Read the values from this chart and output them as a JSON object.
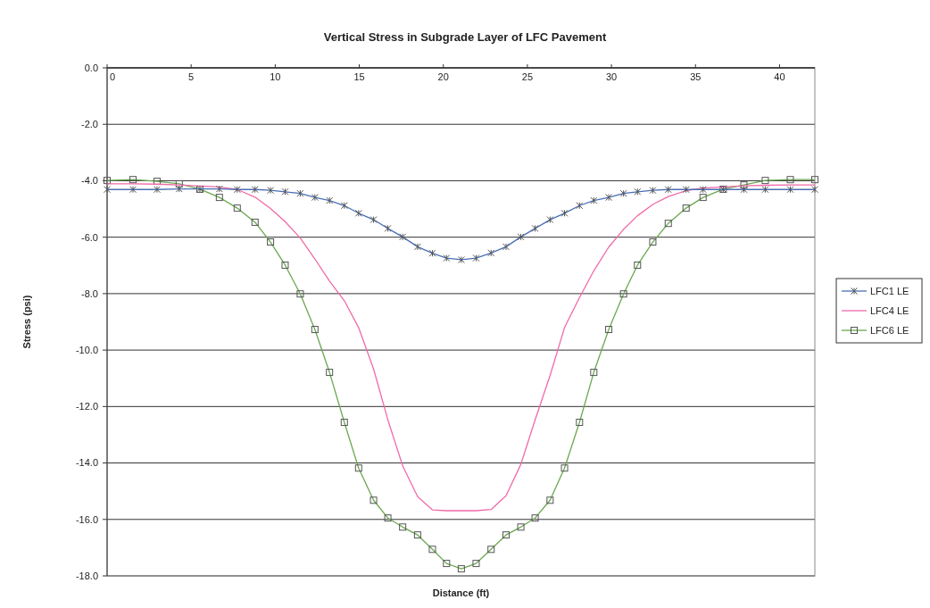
{
  "chart_data": {
    "type": "line",
    "title": "Vertical Stress in Subgrade Layer of LFC Pavement",
    "xlabel": "Distance (ft)",
    "ylabel": "Stress (psi)",
    "x": [
      0,
      1.54,
      2.97,
      4.29,
      5.52,
      6.68,
      7.74,
      8.8,
      9.72,
      10.59,
      11.49,
      12.36,
      13.23,
      14.11,
      14.96,
      15.85,
      16.7,
      17.58,
      18.47,
      19.35,
      20.19,
      21.07,
      21.95,
      22.84,
      23.73,
      24.61,
      25.46,
      26.35,
      27.21,
      28.1,
      28.95,
      29.84,
      30.72,
      31.55,
      32.46,
      33.38,
      34.44,
      35.45,
      36.65,
      37.88,
      39.15,
      40.64,
      42.1
    ],
    "series": [
      {
        "name": "LFC1 LE",
        "color": "#4a6fb5",
        "marker": "cross",
        "values": [
          -4.31,
          -4.31,
          -4.31,
          -4.29,
          -4.29,
          -4.29,
          -4.31,
          -4.31,
          -4.34,
          -4.39,
          -4.45,
          -4.59,
          -4.7,
          -4.88,
          -5.15,
          -5.38,
          -5.69,
          -5.99,
          -6.34,
          -6.57,
          -6.74,
          -6.8,
          -6.74,
          -6.56,
          -6.34,
          -5.99,
          -5.69,
          -5.38,
          -5.15,
          -4.88,
          -4.7,
          -4.59,
          -4.45,
          -4.39,
          -4.34,
          -4.31,
          -4.31,
          -4.31,
          -4.31,
          -4.31,
          -4.31,
          -4.31,
          -4.31
        ]
      },
      {
        "name": "LFC4 LE",
        "color": "#f06aa8",
        "marker": "none",
        "values": [
          -4.11,
          -4.11,
          -4.12,
          -4.15,
          -4.19,
          -4.22,
          -4.31,
          -4.58,
          -4.98,
          -5.45,
          -6.03,
          -6.77,
          -7.56,
          -8.25,
          -9.2,
          -10.67,
          -12.47,
          -14.1,
          -15.19,
          -15.66,
          -15.69,
          -15.69,
          -15.69,
          -15.65,
          -15.16,
          -14.05,
          -12.47,
          -10.9,
          -9.2,
          -8.14,
          -7.19,
          -6.35,
          -5.72,
          -5.24,
          -4.84,
          -4.56,
          -4.35,
          -4.26,
          -4.22,
          -4.18,
          -4.16,
          -4.15,
          -4.15
        ]
      },
      {
        "name": "LFC6 LE",
        "color": "#6aa84f",
        "marker": "square",
        "values": [
          -3.99,
          -3.96,
          -4.02,
          -4.11,
          -4.3,
          -4.59,
          -4.97,
          -5.47,
          -6.17,
          -6.99,
          -8.01,
          -9.27,
          -10.79,
          -12.56,
          -14.18,
          -15.32,
          -15.95,
          -16.27,
          -16.55,
          -17.06,
          -17.56,
          -17.75,
          -17.56,
          -17.06,
          -16.55,
          -16.27,
          -15.95,
          -15.32,
          -14.18,
          -12.56,
          -10.79,
          -9.27,
          -8.01,
          -6.99,
          -6.17,
          -5.51,
          -4.97,
          -4.59,
          -4.3,
          -4.15,
          -3.99,
          -3.96,
          -3.96
        ]
      }
    ],
    "xlim": [
      0,
      42.1
    ],
    "xticks": [
      0,
      5,
      10,
      15,
      20,
      25,
      30,
      35,
      40
    ],
    "ylim": [
      -18,
      0
    ],
    "yticks": [
      {
        "value": 0,
        "label": "0.0"
      },
      {
        "value": -2,
        "label": "-2.0"
      },
      {
        "value": -4,
        "label": "-4.0"
      },
      {
        "value": -6,
        "label": "-6.0"
      },
      {
        "value": -8,
        "label": "-8.0"
      },
      {
        "value": -10,
        "label": "-10.0"
      },
      {
        "value": -12,
        "label": "-12.0"
      },
      {
        "value": -14,
        "label": "-14.0"
      },
      {
        "value": -16,
        "label": "-16.0"
      },
      {
        "value": -18,
        "label": "-18.0"
      }
    ],
    "grid": "y",
    "legend": "right",
    "line_style": "solid"
  }
}
